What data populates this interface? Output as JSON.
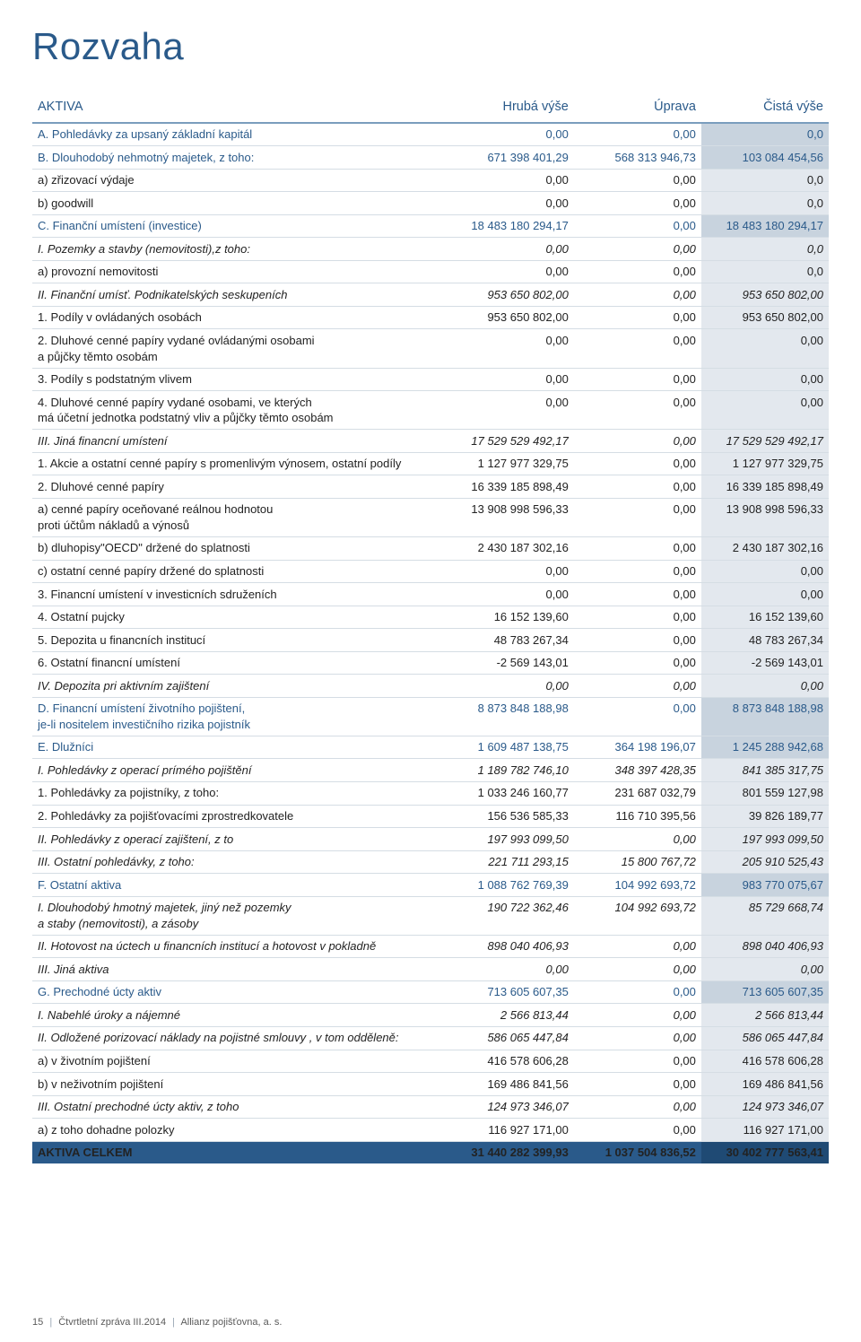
{
  "colors": {
    "heading": "#2a5a8a",
    "rule": "#7a9dbd",
    "row_border": "#d5dde4",
    "shade_light": "#e3e8ee",
    "shade_section": "#c8d3de",
    "total_bg": "#2a5a8a",
    "total_shade": "#1f4a74",
    "text": "#222222",
    "footer": "#5a5a5a"
  },
  "title": "Rozvaha",
  "columns": {
    "label": "AKTIVA",
    "c1": "Hrubá výše",
    "c2": "Úprava",
    "c3": "Čistá výše"
  },
  "column_widths_pct": [
    52,
    16,
    16,
    16
  ],
  "rows": [
    {
      "type": "section",
      "indent": 0,
      "label": "A.  Pohledávky za upsaný základní kapitál",
      "v": [
        "0,00",
        "0,00",
        "0,0"
      ]
    },
    {
      "type": "section",
      "indent": 0,
      "label": "B.  Dlouhodobý nehmotný majetek, z toho:",
      "v": [
        "671 398 401,29",
        "568 313 946,73",
        "103 084 454,56"
      ]
    },
    {
      "type": "plain",
      "indent": 1,
      "label": "a)  zřizovací výdaje",
      "v": [
        "0,00",
        "0,00",
        "0,0"
      ]
    },
    {
      "type": "plain",
      "indent": 1,
      "label": "b)  goodwill",
      "v": [
        "0,00",
        "0,00",
        "0,0"
      ]
    },
    {
      "type": "section",
      "indent": 0,
      "label": "C.  Finanční umístení (investice)",
      "v": [
        "18 483 180 294,17",
        "0,00",
        "18 483 180 294,17"
      ]
    },
    {
      "type": "sub",
      "indent": 1,
      "label": "I.   Pozemky a stavby (nemovitosti),z toho:",
      "v": [
        "0,00",
        "0,00",
        "0,0"
      ]
    },
    {
      "type": "plain",
      "indent": 2,
      "label": "a) provozní nemovitosti",
      "v": [
        "0,00",
        "0,00",
        "0,0"
      ]
    },
    {
      "type": "sub",
      "indent": 1,
      "label": "II.  Finanční umísť. Podnikatelských seskupeních",
      "v": [
        "953 650 802,00",
        "0,00",
        "953 650 802,00"
      ]
    },
    {
      "type": "plain",
      "indent": 2,
      "label": "1. Podíly v ovládaných osobách",
      "v": [
        "953 650 802,00",
        "0,00",
        "953 650 802,00"
      ]
    },
    {
      "type": "plain",
      "indent": 2,
      "label": "2. Dluhové cenné papíry vydané ovládanými osobami\n    a půjčky těmto osobám",
      "v": [
        "0,00",
        "0,00",
        "0,00"
      ]
    },
    {
      "type": "plain",
      "indent": 2,
      "label": "3. Podíly s podstatným vlivem",
      "v": [
        "0,00",
        "0,00",
        "0,00"
      ]
    },
    {
      "type": "plain",
      "indent": 2,
      "label": "4. Dluhové cenné papíry vydané osobami, ve kterých\n    má účetní jednotka podstatný vliv a půjčky těmto osobám",
      "v": [
        "0,00",
        "0,00",
        "0,00"
      ]
    },
    {
      "type": "sub",
      "indent": 1,
      "label": "III. Jiná financní umístení",
      "v": [
        "17 529 529 492,17",
        "0,00",
        "17 529 529 492,17"
      ]
    },
    {
      "type": "plain",
      "indent": 2,
      "label": "1. Akcie a ostatní cenné papíry s promenlivým výnosem, ostatní podíly",
      "v": [
        "1 127 977 329,75",
        "0,00",
        "1 127 977 329,75"
      ]
    },
    {
      "type": "plain",
      "indent": 2,
      "label": "2. Dluhové cenné papíry",
      "v": [
        "16 339 185 898,49",
        "0,00",
        "16 339 185 898,49"
      ]
    },
    {
      "type": "plain",
      "indent": 3,
      "label": "a) cenné papíry oceňované reálnou hodnotou\n    proti účtům nákladů a výnosů",
      "v": [
        "13 908 998 596,33",
        "0,00",
        "13 908 998 596,33"
      ]
    },
    {
      "type": "plain",
      "indent": 3,
      "label": "b) dluhopisy\"OECD\" držené do splatnosti",
      "v": [
        "2 430 187 302,16",
        "0,00",
        "2 430 187 302,16"
      ]
    },
    {
      "type": "plain",
      "indent": 3,
      "label": "c) ostatní cenné papíry držené do splatnosti",
      "v": [
        "0,00",
        "0,00",
        "0,00"
      ]
    },
    {
      "type": "plain",
      "indent": 2,
      "label": "3. Financní umístení v investicních sdruženích",
      "v": [
        "0,00",
        "0,00",
        "0,00"
      ]
    },
    {
      "type": "plain",
      "indent": 2,
      "label": "4. Ostatní pujcky",
      "v": [
        "16 152 139,60",
        "0,00",
        "16 152 139,60"
      ]
    },
    {
      "type": "plain",
      "indent": 2,
      "label": "5. Depozita u financních institucí",
      "v": [
        "48 783 267,34",
        "0,00",
        "48 783 267,34"
      ]
    },
    {
      "type": "plain",
      "indent": 2,
      "label": "6. Ostatní financní umístení",
      "v": [
        "-2 569 143,01",
        "0,00",
        "-2 569 143,01"
      ]
    },
    {
      "type": "sub",
      "indent": 1,
      "label": "IV. Depozita pri aktivním zajištení",
      "v": [
        "0,00",
        "0,00",
        "0,00"
      ]
    },
    {
      "type": "section",
      "indent": 0,
      "label": "D.  Financní umístení životního pojištení,\n    je-li nositelem investičního rizika pojistník",
      "v": [
        "8 873 848 188,98",
        "0,00",
        "8 873 848 188,98"
      ]
    },
    {
      "type": "section",
      "indent": 0,
      "label": "E.  Dlužníci",
      "v": [
        "1 609 487 138,75",
        "364 198 196,07",
        "1 245 288 942,68"
      ]
    },
    {
      "type": "sub",
      "indent": 1,
      "label": "I.   Pohledávky z operací prímého pojištění",
      "v": [
        "1 189 782 746,10",
        "348 397 428,35",
        "841 385 317,75"
      ]
    },
    {
      "type": "plain",
      "indent": 2,
      "label": "1. Pohledávky za pojistníky, z toho:",
      "v": [
        "1 033 246 160,77",
        "231 687 032,79",
        "801 559 127,98"
      ]
    },
    {
      "type": "plain",
      "indent": 2,
      "label": "2. Pohledávky za pojišťovacími zprostredkovatele",
      "v": [
        "156 536 585,33",
        "116 710 395,56",
        "39 826 189,77"
      ]
    },
    {
      "type": "sub",
      "indent": 1,
      "label": "II.  Pohledávky z operací zajištení, z to",
      "v": [
        "197 993 099,50",
        "0,00",
        "197 993 099,50"
      ]
    },
    {
      "type": "sub",
      "indent": 1,
      "label": "III. Ostatní pohledávky, z toho:",
      "v": [
        "221 711 293,15",
        "15 800 767,72",
        "205 910 525,43"
      ]
    },
    {
      "type": "section",
      "indent": 0,
      "label": "F.   Ostatní aktiva",
      "v": [
        "1 088 762 769,39",
        "104 992 693,72",
        "983 770 075,67"
      ]
    },
    {
      "type": "sub",
      "indent": 1,
      "label": "I.   Dlouhodobý hmotný majetek, jiný než pozemky\n    a staby (nemovitosti), a zásoby",
      "v": [
        "190 722 362,46",
        "104 992 693,72",
        "85 729 668,74"
      ]
    },
    {
      "type": "sub",
      "indent": 1,
      "label": "II.  Hotovost na úctech u financních institucí a hotovost v pokladně",
      "v": [
        "898 040 406,93",
        "0,00",
        "898 040 406,93"
      ]
    },
    {
      "type": "sub",
      "indent": 1,
      "label": "III. Jiná aktiva",
      "v": [
        "0,00",
        "0,00",
        "0,00"
      ]
    },
    {
      "type": "section",
      "indent": 0,
      "label": "G.  Prechodné úcty aktiv",
      "v": [
        "713 605 607,35",
        "0,00",
        "713 605 607,35"
      ]
    },
    {
      "type": "sub",
      "indent": 1,
      "label": "I.   Nabehlé úroky a nájemné",
      "v": [
        "2 566 813,44",
        "0,00",
        "2 566 813,44"
      ]
    },
    {
      "type": "sub",
      "indent": 1,
      "label": "II.  Odložené porizovací náklady na pojistné smlouvy , v tom odděleně:",
      "v": [
        "586 065 447,84",
        "0,00",
        "586 065 447,84"
      ]
    },
    {
      "type": "plain",
      "indent": 3,
      "label": "a) v životním pojištení",
      "v": [
        "416 578 606,28",
        "0,00",
        "416 578 606,28"
      ]
    },
    {
      "type": "plain",
      "indent": 3,
      "label": "b) v neživotním pojištení",
      "v": [
        "169 486 841,56",
        "0,00",
        "169 486 841,56"
      ]
    },
    {
      "type": "sub",
      "indent": 1,
      "label": "III. Ostatní prechodné úcty aktiv, z toho",
      "v": [
        "124 973 346,07",
        "0,00",
        "124 973 346,07"
      ]
    },
    {
      "type": "plain",
      "indent": 3,
      "label": "a) z toho dohadne polozky",
      "v": [
        "116 927 171,00",
        "0,00",
        "116 927 171,00"
      ]
    },
    {
      "type": "total",
      "indent": 0,
      "label": "AKTIVA CELKEM",
      "v": [
        "31 440 282 399,93",
        "1 037 504 836,52",
        "30 402 777 563,41"
      ]
    }
  ],
  "footer": {
    "page": "15",
    "doc": "Čtvrtletní zpráva III.2014",
    "company": "Allianz pojišťovna, a. s."
  }
}
